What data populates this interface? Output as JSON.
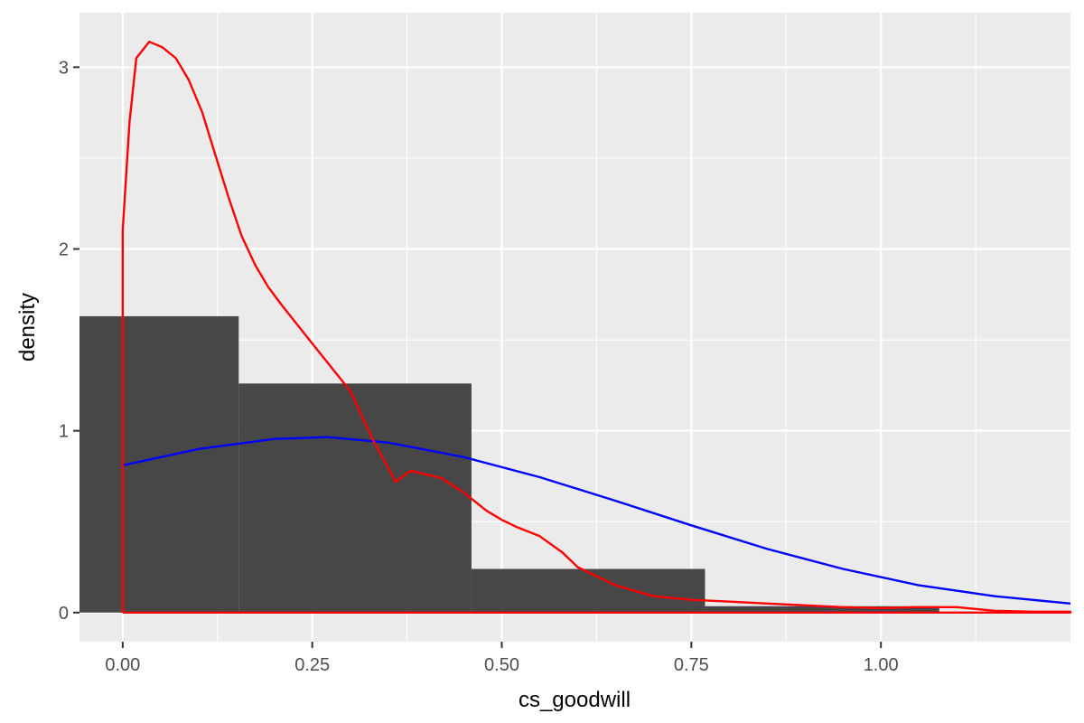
{
  "chart_data": {
    "type": "bar",
    "title": "",
    "xlabel": "cs_goodwill",
    "ylabel": "density",
    "xlim": [
      -0.057,
      1.25
    ],
    "ylim": [
      -0.16,
      3.3
    ],
    "grid": true,
    "legend": "none",
    "x_ticks": [
      {
        "value": 0,
        "label": "0.00"
      },
      {
        "value": 0.25,
        "label": "0.25"
      },
      {
        "value": 0.5,
        "label": "0.50"
      },
      {
        "value": 0.75,
        "label": "0.75"
      },
      {
        "value": 1.0,
        "label": "1.00"
      }
    ],
    "y_ticks": [
      {
        "value": 0,
        "label": "0"
      },
      {
        "value": 1,
        "label": "1"
      },
      {
        "value": 2,
        "label": "2"
      },
      {
        "value": 3,
        "label": "3"
      }
    ],
    "histogram": {
      "color": "#474747",
      "bins": [
        {
          "x0": -0.057,
          "x1": 0.153,
          "density": 1.63
        },
        {
          "x0": 0.153,
          "x1": 0.46,
          "density": 1.26
        },
        {
          "x0": 0.46,
          "x1": 0.768,
          "density": 0.24
        },
        {
          "x0": 0.768,
          "x1": 1.077,
          "density": 0.035
        }
      ]
    },
    "series": [
      {
        "color": "#0000ff",
        "type": "line",
        "x": [
          0.0,
          0.1,
          0.2,
          0.27,
          0.35,
          0.45,
          0.55,
          0.65,
          0.75,
          0.85,
          0.95,
          1.05,
          1.15,
          1.25
        ],
        "y": [
          0.81,
          0.9,
          0.955,
          0.965,
          0.935,
          0.855,
          0.745,
          0.615,
          0.48,
          0.35,
          0.24,
          0.15,
          0.09,
          0.05
        ]
      },
      {
        "color": "#ff0000",
        "type": "line",
        "x": [
          0.0,
          0.0,
          0.009,
          0.018,
          0.035,
          0.052,
          0.07,
          0.087,
          0.105,
          0.122,
          0.14,
          0.157,
          0.175,
          0.192,
          0.21,
          0.25,
          0.3,
          0.33,
          0.36,
          0.38,
          0.42,
          0.45,
          0.48,
          0.5,
          0.52,
          0.55,
          0.58,
          0.6,
          0.65,
          0.7,
          0.75,
          0.8,
          0.85,
          0.9,
          0.95,
          1.0,
          1.05,
          1.1,
          1.15,
          1.2,
          1.25,
          1.25,
          0.0
        ],
        "y": [
          0.0,
          2.1,
          2.7,
          3.05,
          3.14,
          3.11,
          3.05,
          2.93,
          2.75,
          2.52,
          2.28,
          2.07,
          1.91,
          1.79,
          1.69,
          1.48,
          1.22,
          0.95,
          0.72,
          0.78,
          0.74,
          0.66,
          0.56,
          0.51,
          0.47,
          0.42,
          0.33,
          0.25,
          0.15,
          0.09,
          0.07,
          0.06,
          0.05,
          0.04,
          0.03,
          0.025,
          0.03,
          0.03,
          0.01,
          0.005,
          0.005,
          0.0,
          0.0
        ]
      }
    ]
  }
}
